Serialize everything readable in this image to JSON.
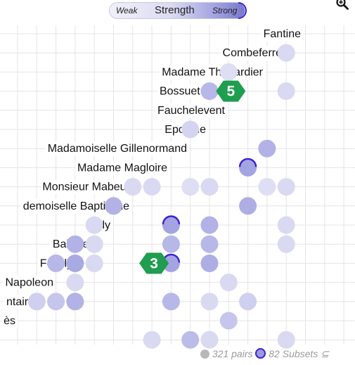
{
  "legend": {
    "weak": "Weak",
    "title": "Strength",
    "strong": "Strong"
  },
  "footer": {
    "pairs": "321 pairs",
    "subsets": "82 Subsets ⊆"
  },
  "chart_data": {
    "type": "scatter",
    "rows": [
      "Fantine",
      "Combeferre",
      "Madame Thénardier",
      "Bossuet (Lesgle)",
      "Fauchelevent",
      "Eponine",
      "Madamoiselle Gillenormand",
      "Madame Magloire",
      "Monsieur Mabeuf",
      "demoiselle Baptistine",
      "Joly",
      "Bahorel",
      "Feuilly",
      "Napoleon",
      "ntaire",
      "ès"
    ],
    "badges": [
      {
        "label": "5",
        "row": 3,
        "col": 12
      },
      {
        "label": "3",
        "row": 12,
        "col": 8
      }
    ],
    "points": [
      {
        "row": 1,
        "col": 15,
        "s": 0.2
      },
      {
        "row": 2,
        "col": 12,
        "s": 0.15
      },
      {
        "row": 3,
        "col": 11,
        "s": 0.55
      },
      {
        "row": 3,
        "col": 15,
        "s": 0.2
      },
      {
        "row": 5,
        "col": 10,
        "s": 0.25
      },
      {
        "row": 6,
        "col": 14,
        "s": 0.6
      },
      {
        "row": 7,
        "col": 13,
        "s": 0.75,
        "subset": true
      },
      {
        "row": 8,
        "col": 7,
        "s": 0.2
      },
      {
        "row": 8,
        "col": 8,
        "s": 0.2
      },
      {
        "row": 8,
        "col": 10,
        "s": 0.15
      },
      {
        "row": 8,
        "col": 11,
        "s": 0.2
      },
      {
        "row": 8,
        "col": 14,
        "s": 0.15
      },
      {
        "row": 8,
        "col": 15,
        "s": 0.2
      },
      {
        "row": 9,
        "col": 6,
        "s": 0.6
      },
      {
        "row": 9,
        "col": 13,
        "s": 0.65
      },
      {
        "row": 10,
        "col": 5,
        "s": 0.2
      },
      {
        "row": 10,
        "col": 9,
        "s": 0.75,
        "subset": true
      },
      {
        "row": 10,
        "col": 11,
        "s": 0.6
      },
      {
        "row": 10,
        "col": 15,
        "s": 0.2
      },
      {
        "row": 11,
        "col": 4,
        "s": 0.6
      },
      {
        "row": 11,
        "col": 5,
        "s": 0.2
      },
      {
        "row": 11,
        "col": 9,
        "s": 0.55
      },
      {
        "row": 11,
        "col": 11,
        "s": 0.55
      },
      {
        "row": 11,
        "col": 15,
        "s": 0.2
      },
      {
        "row": 12,
        "col": 3,
        "s": 0.55
      },
      {
        "row": 12,
        "col": 4,
        "s": 0.7
      },
      {
        "row": 12,
        "col": 5,
        "s": 0.2
      },
      {
        "row": 12,
        "col": 9,
        "s": 0.75,
        "subset": true
      },
      {
        "row": 12,
        "col": 11,
        "s": 0.65
      },
      {
        "row": 13,
        "col": 4,
        "s": 0.2
      },
      {
        "row": 13,
        "col": 12,
        "s": 0.2
      },
      {
        "row": 14,
        "col": 2,
        "s": 0.3
      },
      {
        "row": 14,
        "col": 3,
        "s": 0.4
      },
      {
        "row": 14,
        "col": 4,
        "s": 0.6
      },
      {
        "row": 14,
        "col": 9,
        "s": 0.55
      },
      {
        "row": 14,
        "col": 11,
        "s": 0.2
      },
      {
        "row": 14,
        "col": 13,
        "s": 0.3
      },
      {
        "row": 15,
        "col": 12,
        "s": 0.4
      },
      {
        "row": 16,
        "col": 8,
        "s": 0.2
      },
      {
        "row": 16,
        "col": 10,
        "s": 0.5
      },
      {
        "row": 16,
        "col": 11,
        "s": 0.2
      },
      {
        "row": 16,
        "col": 15,
        "s": 0.2
      }
    ]
  }
}
